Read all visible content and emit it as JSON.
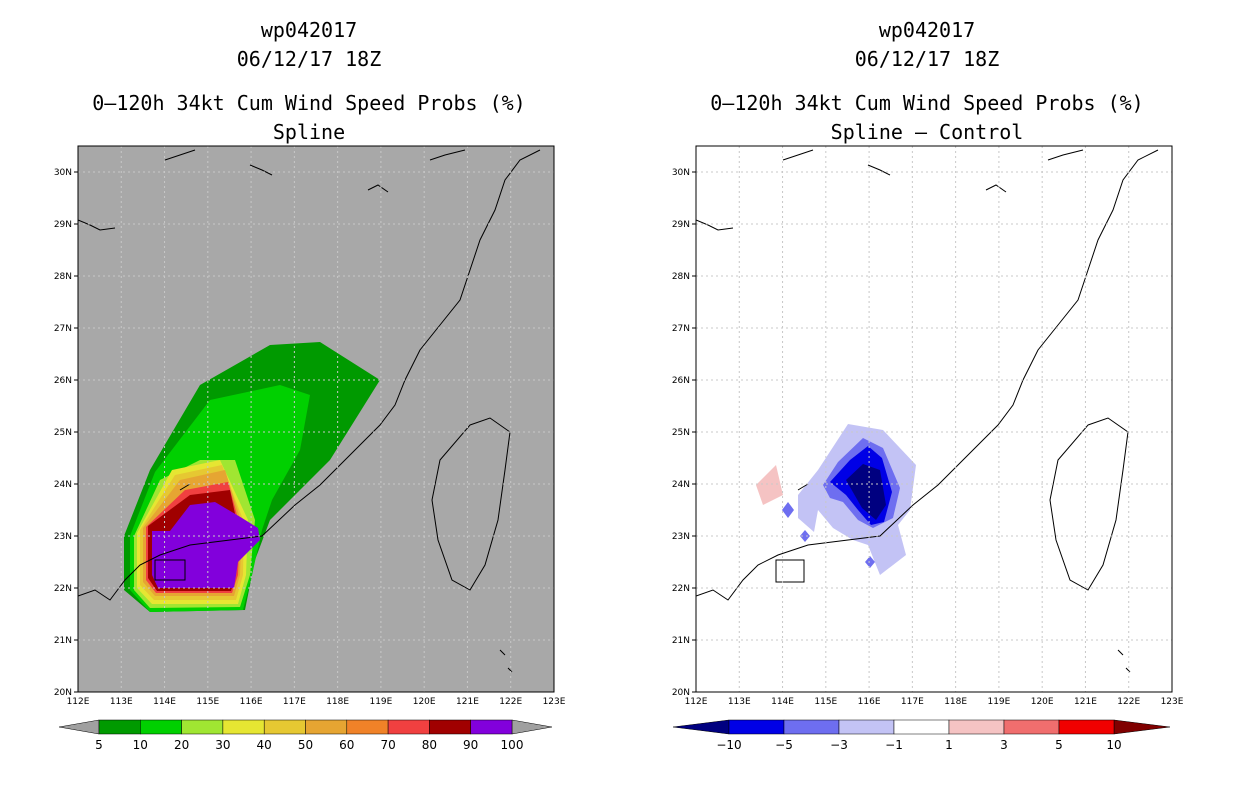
{
  "panels": [
    {
      "storm_id": "wp042017",
      "datetime": "06/12/17 18Z",
      "product": "0–120h 34kt Cum Wind Speed Probs (%)",
      "subtitle": "Spline",
      "colorbar": {
        "labels": [
          "5",
          "10",
          "20",
          "30",
          "40",
          "50",
          "60",
          "70",
          "80",
          "90",
          "100"
        ],
        "colors": [
          "#009a00",
          "#00d000",
          "#a0e632",
          "#e6e632",
          "#e6c832",
          "#e6a532",
          "#f08228",
          "#f04040",
          "#a00000",
          "#8200dc"
        ],
        "under_color": "#a0a0a0",
        "over_color": "#a0a0a0"
      }
    },
    {
      "storm_id": "wp042017",
      "datetime": "06/12/17 18Z",
      "product": "0–120h 34kt Cum Wind Speed Probs (%)",
      "subtitle": "Spline – Control",
      "colorbar": {
        "labels": [
          "−10",
          "−5",
          "−3",
          "−1",
          "1",
          "3",
          "5",
          "10"
        ],
        "colors": [
          "#0000e6",
          "#6e6ef0",
          "#c3c3f5",
          "#ffffff",
          "#f5c3c3",
          "#f06e6e",
          "#f00000"
        ],
        "under_color": "#000080",
        "over_color": "#800000"
      }
    }
  ],
  "axes": {
    "lon_labels": [
      "112E",
      "113E",
      "114E",
      "115E",
      "116E",
      "117E",
      "118E",
      "119E",
      "120E",
      "121E",
      "122E",
      "123E"
    ],
    "lat_labels": [
      "20N",
      "21N",
      "22N",
      "23N",
      "24N",
      "25N",
      "26N",
      "27N",
      "28N",
      "29N",
      "30N"
    ]
  },
  "palette": {
    "background_gray": "#a8a8a8",
    "deep_blue": "#000080"
  }
}
